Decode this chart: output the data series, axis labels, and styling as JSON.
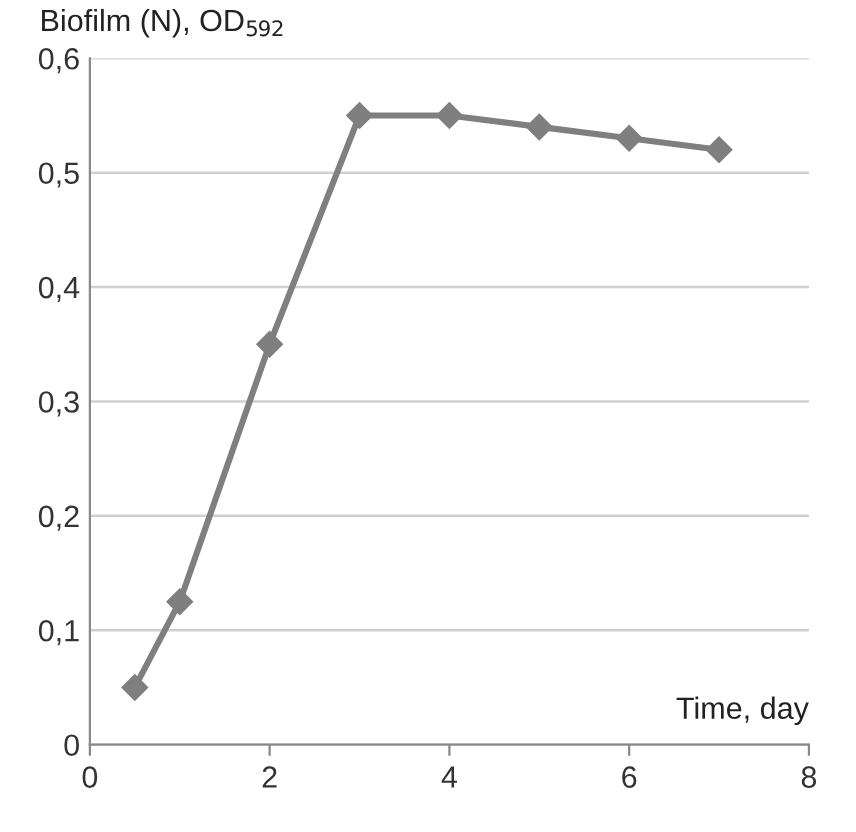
{
  "chart_data": {
    "type": "line",
    "xlabel": "Time, day",
    "ylabel": "Biofilm (N), OD$_{592}$",
    "x": [
      0.5,
      1,
      2,
      3,
      4,
      5,
      6,
      7
    ],
    "series": [
      {
        "color": "#7f7f7f",
        "values": [
          0.05,
          0.125,
          0.35,
          0.55,
          0.55,
          0.54,
          0.53,
          0.52
        ]
      }
    ],
    "xlim": [
      0,
      8
    ],
    "xticks": [
      0,
      2,
      4,
      6,
      8
    ],
    "ylim": [
      0,
      0.6
    ],
    "yticks": [
      0,
      {
        "value": 0.1,
        "label": "0,1"
      },
      {
        "value": 0.2,
        "label": "0,2"
      },
      {
        "value": 0.3,
        "label": "0,3"
      },
      {
        "value": 0.4,
        "label": "0,4"
      },
      {
        "value": 0.5,
        "label": "0,5"
      },
      {
        "value": 0.6,
        "label": "0,6"
      }
    ],
    "grid": "y",
    "marker": "diamond",
    "line_style": "solid"
  }
}
